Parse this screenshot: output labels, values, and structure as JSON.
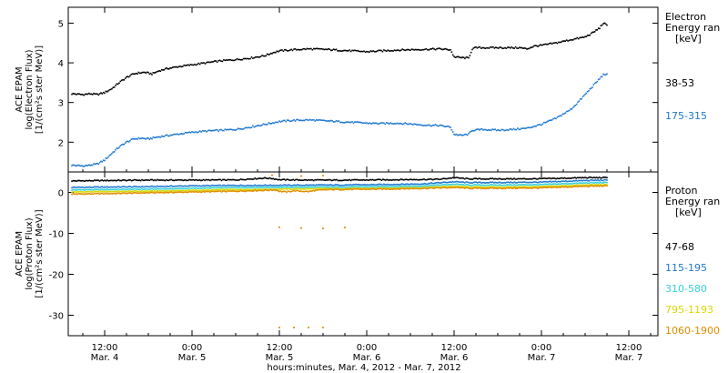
{
  "figure": {
    "xlabel": "hours:minutes, Mar.  4, 2012 - Mar.  7, 2012",
    "x_ticks": [
      {
        "h": 12,
        "line1": "12:00",
        "line2": "Mar. 4"
      },
      {
        "h": 24,
        "line1": "0:00",
        "line2": "Mar. 5"
      },
      {
        "h": 36,
        "line1": "12:00",
        "line2": "Mar. 5"
      },
      {
        "h": 48,
        "line1": "0:00",
        "line2": "Mar. 6"
      },
      {
        "h": 60,
        "line1": "12:00",
        "line2": "Mar. 6"
      },
      {
        "h": 72,
        "line1": "0:00",
        "line2": "Mar. 7"
      },
      {
        "h": 84,
        "line1": "12:00",
        "line2": "Mar. 7"
      }
    ]
  },
  "chart_data": [
    {
      "type": "scatter",
      "name": "electron",
      "ylabel_lines": [
        "ACE EPAM",
        "log(Electron Flux)",
        "[1/(cm²s ster MeV)]"
      ],
      "legend_title": [
        "Electron",
        "Energy ran",
        "[keV]"
      ],
      "xlim": [
        7,
        88
      ],
      "ylim": [
        1.25,
        5.4
      ],
      "yticks": [
        2,
        3,
        4,
        5
      ],
      "series": [
        {
          "name": "38-53",
          "color": "#000000",
          "points": [
            [
              7.5,
              3.22
            ],
            [
              9,
              3.2
            ],
            [
              10,
              3.22
            ],
            [
              11,
              3.2
            ],
            [
              12,
              3.25
            ],
            [
              13,
              3.35
            ],
            [
              14,
              3.5
            ],
            [
              15,
              3.63
            ],
            [
              16,
              3.72
            ],
            [
              16.5,
              3.74
            ],
            [
              17.5,
              3.76
            ],
            [
              18.5,
              3.72
            ],
            [
              19.5,
              3.8
            ],
            [
              20.5,
              3.85
            ],
            [
              22,
              3.9
            ],
            [
              24,
              3.95
            ],
            [
              26,
              4.0
            ],
            [
              28,
              4.05
            ],
            [
              30,
              4.08
            ],
            [
              32,
              4.12
            ],
            [
              34,
              4.18
            ],
            [
              35,
              4.25
            ],
            [
              36,
              4.3
            ],
            [
              38,
              4.33
            ],
            [
              40,
              4.35
            ],
            [
              42,
              4.34
            ],
            [
              44,
              4.32
            ],
            [
              46,
              4.3
            ],
            [
              48,
              4.28
            ],
            [
              50,
              4.3
            ],
            [
              52,
              4.32
            ],
            [
              54,
              4.33
            ],
            [
              56,
              4.34
            ],
            [
              58,
              4.35
            ],
            [
              59.5,
              4.33
            ],
            [
              60,
              4.15
            ],
            [
              61,
              4.13
            ],
            [
              62,
              4.12
            ],
            [
              62.5,
              4.35
            ],
            [
              63,
              4.38
            ],
            [
              65,
              4.38
            ],
            [
              67,
              4.38
            ],
            [
              69,
              4.38
            ],
            [
              70,
              4.35
            ],
            [
              71,
              4.42
            ],
            [
              72,
              4.44
            ],
            [
              74,
              4.5
            ],
            [
              76,
              4.58
            ],
            [
              78,
              4.65
            ],
            [
              79,
              4.75
            ],
            [
              80,
              4.88
            ],
            [
              80.5,
              5.0
            ],
            [
              81,
              4.95
            ]
          ]
        },
        {
          "name": "175-315",
          "color": "#1f78d0",
          "points": [
            [
              7.5,
              1.42
            ],
            [
              9,
              1.4
            ],
            [
              10,
              1.42
            ],
            [
              11,
              1.45
            ],
            [
              12,
              1.55
            ],
            [
              13,
              1.72
            ],
            [
              14,
              1.88
            ],
            [
              15,
              2.0
            ],
            [
              16,
              2.08
            ],
            [
              17,
              2.1
            ],
            [
              18,
              2.08
            ],
            [
              19,
              2.12
            ],
            [
              20,
              2.15
            ],
            [
              22,
              2.2
            ],
            [
              24,
              2.25
            ],
            [
              26,
              2.28
            ],
            [
              28,
              2.3
            ],
            [
              30,
              2.32
            ],
            [
              32,
              2.38
            ],
            [
              34,
              2.45
            ],
            [
              36,
              2.52
            ],
            [
              38,
              2.55
            ],
            [
              40,
              2.56
            ],
            [
              42,
              2.54
            ],
            [
              44,
              2.52
            ],
            [
              46,
              2.5
            ],
            [
              48,
              2.48
            ],
            [
              50,
              2.47
            ],
            [
              52,
              2.48
            ],
            [
              54,
              2.46
            ],
            [
              56,
              2.43
            ],
            [
              58,
              2.42
            ],
            [
              59.5,
              2.38
            ],
            [
              60,
              2.2
            ],
            [
              61,
              2.17
            ],
            [
              62,
              2.2
            ],
            [
              62.5,
              2.3
            ],
            [
              64,
              2.32
            ],
            [
              66,
              2.3
            ],
            [
              68,
              2.32
            ],
            [
              70,
              2.35
            ],
            [
              72,
              2.45
            ],
            [
              74,
              2.6
            ],
            [
              76,
              2.82
            ],
            [
              77,
              3.0
            ],
            [
              78,
              3.2
            ],
            [
              79,
              3.4
            ],
            [
              80,
              3.6
            ],
            [
              80.5,
              3.7
            ],
            [
              81,
              3.72
            ]
          ]
        }
      ]
    },
    {
      "type": "scatter",
      "name": "proton",
      "ylabel_lines": [
        "ACE EPAM",
        "log(Proton Flux)",
        "[1/(cm²s ster MeV)]"
      ],
      "legend_title": [
        "Proton",
        "Energy ran",
        "[keV]"
      ],
      "xlim": [
        7,
        88
      ],
      "ylim": [
        -35,
        5
      ],
      "yticks": [
        0,
        -10,
        -20,
        -30
      ],
      "series": [
        {
          "name": "47-68",
          "color": "#000000",
          "points": [
            [
              7.5,
              2.8
            ],
            [
              12,
              2.9
            ],
            [
              18,
              3.0
            ],
            [
              24,
              3.0
            ],
            [
              30,
              3.05
            ],
            [
              33,
              3.4
            ],
            [
              34,
              3.5
            ],
            [
              35,
              3.4
            ],
            [
              36,
              3.1
            ],
            [
              40,
              3.0
            ],
            [
              46,
              3.0
            ],
            [
              52,
              3.1
            ],
            [
              58,
              3.2
            ],
            [
              60,
              3.6
            ],
            [
              62,
              3.3
            ],
            [
              66,
              3.3
            ],
            [
              70,
              3.3
            ],
            [
              74,
              3.4
            ],
            [
              78,
              3.6
            ],
            [
              81,
              3.6
            ]
          ]
        },
        {
          "name": "115-195",
          "color": "#1f78d0",
          "points": [
            [
              7.5,
              1.2
            ],
            [
              12,
              1.3
            ],
            [
              18,
              1.4
            ],
            [
              24,
              1.6
            ],
            [
              30,
              1.7
            ],
            [
              43,
              1.8
            ],
            [
              50,
              1.9
            ],
            [
              56,
              2.1
            ],
            [
              60,
              2.6
            ],
            [
              62,
              2.4
            ],
            [
              66,
              2.4
            ],
            [
              72,
              2.5
            ],
            [
              78,
              2.9
            ],
            [
              81,
              3.0
            ]
          ]
        },
        {
          "name": "310-580",
          "color": "#33d0d8",
          "points": [
            [
              7.5,
              0.6
            ],
            [
              12,
              0.7
            ],
            [
              18,
              0.8
            ],
            [
              24,
              1.0
            ],
            [
              30,
              1.2
            ],
            [
              43,
              1.3
            ],
            [
              50,
              1.4
            ],
            [
              56,
              1.6
            ],
            [
              60,
              2.0
            ],
            [
              62,
              1.8
            ],
            [
              66,
              1.8
            ],
            [
              72,
              1.9
            ],
            [
              78,
              2.3
            ],
            [
              81,
              2.4
            ]
          ]
        },
        {
          "name": "795-1193",
          "color": "#d8d800",
          "points": [
            [
              7.5,
              0.1
            ],
            [
              12,
              0.2
            ],
            [
              18,
              0.3
            ],
            [
              24,
              0.5
            ],
            [
              30,
              0.7
            ],
            [
              43,
              0.9
            ],
            [
              50,
              1.0
            ],
            [
              56,
              1.2
            ],
            [
              60,
              1.5
            ],
            [
              62,
              1.3
            ],
            [
              66,
              1.3
            ],
            [
              72,
              1.4
            ],
            [
              78,
              1.8
            ],
            [
              81,
              1.9
            ]
          ]
        },
        {
          "name": "1060-1900",
          "color": "#e08c00",
          "points": [
            [
              7.5,
              -0.4
            ],
            [
              12,
              -0.3
            ],
            [
              18,
              -0.1
            ],
            [
              24,
              0.1
            ],
            [
              30,
              0.3
            ],
            [
              35,
              4.2
            ],
            [
              35.5,
              0.6
            ],
            [
              36,
              0.3
            ],
            [
              37,
              0.1
            ],
            [
              38,
              0.4
            ],
            [
              39,
              4.0
            ],
            [
              40,
              0.2
            ],
            [
              41,
              0.5
            ],
            [
              42,
              4.1
            ],
            [
              43,
              0.7
            ],
            [
              50,
              0.8
            ],
            [
              56,
              1.0
            ],
            [
              60,
              1.2
            ],
            [
              62,
              1.0
            ],
            [
              66,
              1.0
            ],
            [
              72,
              1.1
            ],
            [
              78,
              1.5
            ],
            [
              81,
              1.6
            ],
            [
              36,
              -8.5
            ],
            [
              39,
              -8.7
            ],
            [
              42,
              -8.8
            ],
            [
              45,
              -8.6
            ],
            [
              36,
              -33
            ],
            [
              38,
              -33
            ],
            [
              40,
              -33
            ],
            [
              42,
              -33
            ]
          ]
        }
      ]
    }
  ]
}
